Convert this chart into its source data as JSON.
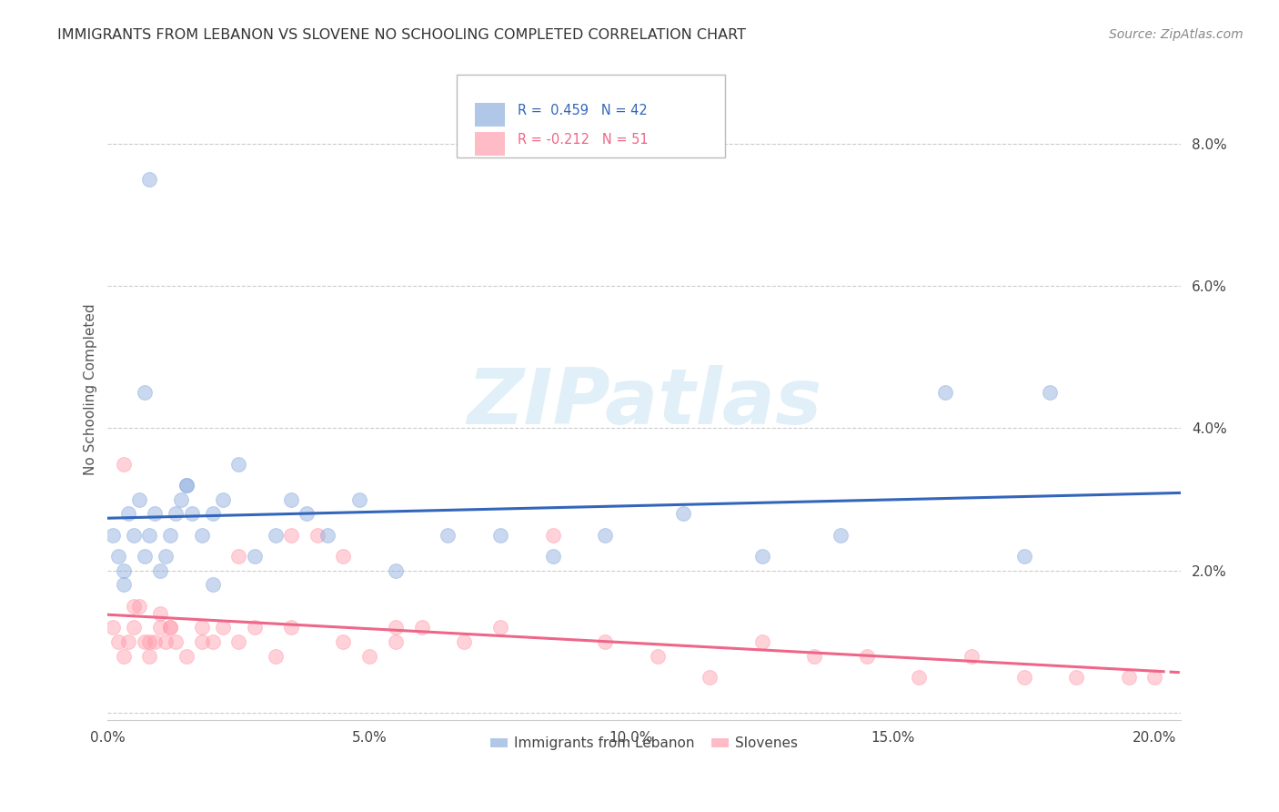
{
  "title": "IMMIGRANTS FROM LEBANON VS SLOVENE NO SCHOOLING COMPLETED CORRELATION CHART",
  "source": "Source: ZipAtlas.com",
  "ylabel": "No Schooling Completed",
  "xlim": [
    0.0,
    0.205
  ],
  "ylim": [
    -0.001,
    0.092
  ],
  "blue_r": "R =  0.459",
  "blue_n": "N = 42",
  "pink_r": "R = -0.212",
  "pink_n": "N = 51",
  "blue_color": "#88AADD",
  "pink_color": "#FF99AA",
  "blue_line_color": "#3366BB",
  "pink_line_color": "#EE6688",
  "background_color": "#FFFFFF",
  "legend_blue_label": "Immigrants from Lebanon",
  "legend_pink_label": "Slovenes",
  "blue_x": [
    0.001,
    0.002,
    0.003,
    0.004,
    0.005,
    0.006,
    0.007,
    0.008,
    0.009,
    0.01,
    0.011,
    0.012,
    0.013,
    0.014,
    0.015,
    0.016,
    0.018,
    0.02,
    0.022,
    0.025,
    0.028,
    0.032,
    0.035,
    0.038,
    0.042,
    0.048,
    0.055,
    0.065,
    0.075,
    0.085,
    0.095,
    0.11,
    0.125,
    0.14,
    0.16,
    0.175,
    0.003,
    0.007,
    0.015,
    0.02,
    0.18,
    0.008
  ],
  "blue_y": [
    0.025,
    0.022,
    0.02,
    0.028,
    0.025,
    0.03,
    0.022,
    0.025,
    0.028,
    0.02,
    0.022,
    0.025,
    0.028,
    0.03,
    0.032,
    0.028,
    0.025,
    0.028,
    0.03,
    0.035,
    0.022,
    0.025,
    0.03,
    0.028,
    0.025,
    0.03,
    0.02,
    0.025,
    0.025,
    0.022,
    0.025,
    0.028,
    0.022,
    0.025,
    0.045,
    0.022,
    0.018,
    0.045,
    0.032,
    0.018,
    0.045,
    0.075
  ],
  "pink_x": [
    0.001,
    0.002,
    0.003,
    0.004,
    0.005,
    0.006,
    0.007,
    0.008,
    0.009,
    0.01,
    0.011,
    0.012,
    0.013,
    0.015,
    0.018,
    0.02,
    0.022,
    0.025,
    0.028,
    0.032,
    0.035,
    0.04,
    0.045,
    0.05,
    0.055,
    0.06,
    0.068,
    0.075,
    0.085,
    0.095,
    0.105,
    0.115,
    0.125,
    0.135,
    0.145,
    0.155,
    0.165,
    0.175,
    0.185,
    0.195,
    0.2,
    0.003,
    0.005,
    0.008,
    0.012,
    0.018,
    0.025,
    0.035,
    0.045,
    0.055,
    0.01
  ],
  "pink_y": [
    0.012,
    0.01,
    0.008,
    0.01,
    0.012,
    0.015,
    0.01,
    0.008,
    0.01,
    0.012,
    0.01,
    0.012,
    0.01,
    0.008,
    0.012,
    0.01,
    0.012,
    0.01,
    0.012,
    0.008,
    0.025,
    0.025,
    0.022,
    0.008,
    0.01,
    0.012,
    0.01,
    0.012,
    0.025,
    0.01,
    0.008,
    0.005,
    0.01,
    0.008,
    0.008,
    0.005,
    0.008,
    0.005,
    0.005,
    0.005,
    0.005,
    0.035,
    0.015,
    0.01,
    0.012,
    0.01,
    0.022,
    0.012,
    0.01,
    0.012,
    0.014
  ]
}
